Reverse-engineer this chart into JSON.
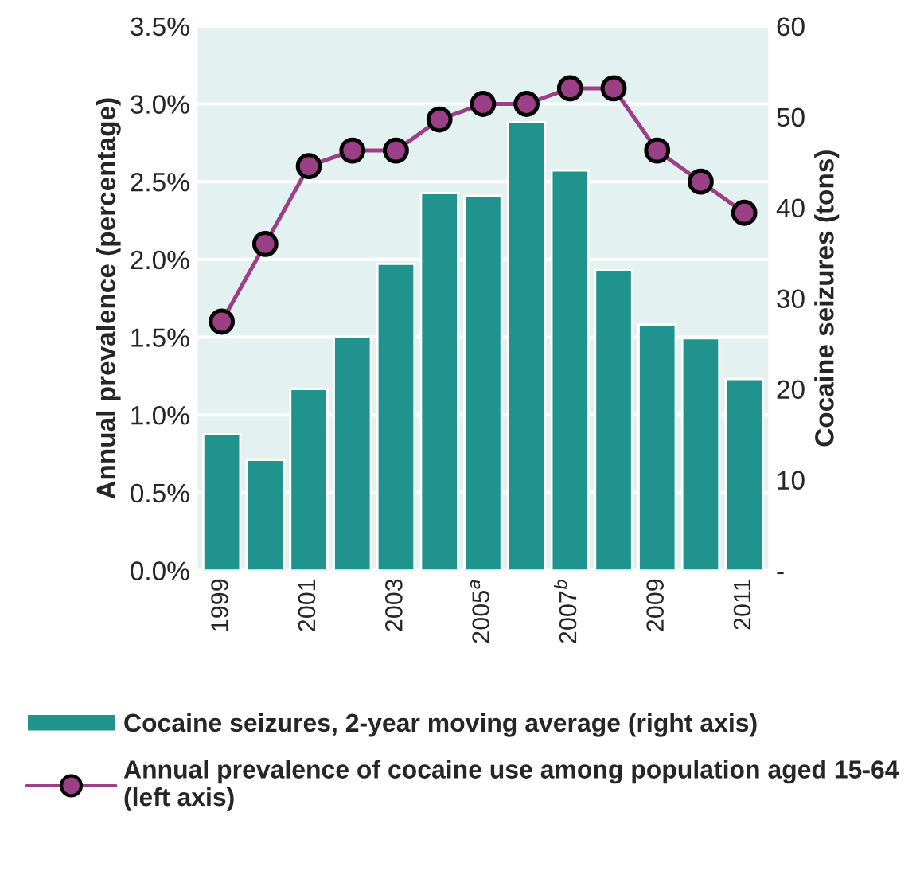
{
  "chart_data": {
    "type": "bar",
    "categories": [
      "1999",
      null,
      "2001",
      null,
      "2003",
      null,
      "2005$^{a}$",
      null,
      "2007$^{b}$",
      null,
      "2009",
      null,
      "2011"
    ],
    "ylabel": "Annual prevalence (percentage)",
    "y2label": "Cocaine seizures (tons)",
    "series": [
      {
        "name": "Cocaine seizures, 2-year moving average (right axis)",
        "axis": "y2",
        "color": "#20938f",
        "values": [
          15.0,
          12.2,
          20.0,
          25.7,
          33.8,
          41.6,
          41.3,
          49.4,
          44.1,
          33.1,
          27.1,
          25.6,
          21.1
        ]
      },
      {
        "name": "Annual prevalence of cocaine use among population aged 15-64 (left axis)",
        "type": "line",
        "axis": "y",
        "color": "#9b3f86",
        "marker": "circle",
        "values": [
          1.6,
          2.1,
          2.6,
          2.7,
          2.7,
          2.9,
          3.0,
          3.0,
          3.1,
          3.1,
          2.7,
          2.5,
          2.3
        ]
      }
    ],
    "ylim": [
      0,
      3.5
    ],
    "yticks": [
      {
        "value": 0,
        "label": "0.0%"
      },
      {
        "value": 0.5,
        "label": "0.5%"
      },
      {
        "value": 1.0,
        "label": "1.0%"
      },
      {
        "value": 1.5,
        "label": "1.5%"
      },
      {
        "value": 2.0,
        "label": "2.0%"
      },
      {
        "value": 2.5,
        "label": "2.5%"
      },
      {
        "value": 3.0,
        "label": "3.0%"
      },
      {
        "value": 3.5,
        "label": "3.5%"
      }
    ],
    "y2lim": [
      0,
      60
    ],
    "y2ticks": [
      {
        "value": 0,
        "label": "-"
      },
      10,
      20,
      30,
      40,
      50,
      60
    ],
    "grid": "y",
    "legend": "bottom"
  }
}
